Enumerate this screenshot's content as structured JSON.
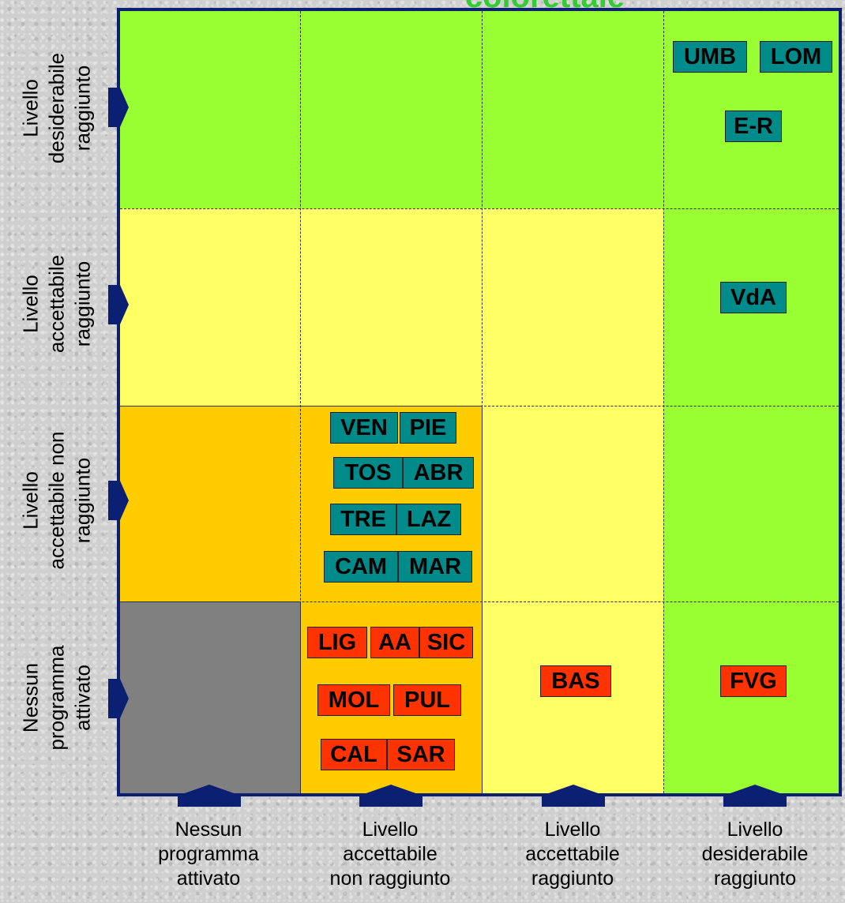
{
  "title": "colorettale",
  "y_axis_labels": [
    "Livello\ndesiderabile\nraggiunto",
    "Livello\naccettabile\nraggiunto",
    "Livello\naccettabile non\nraggiunto",
    "Nessun\nprogramma\nattivato"
  ],
  "x_axis_labels": [
    "Nessun\nprogramma\nattivato",
    "Livello\naccettabile\nnon raggiunto",
    "Livello\naccettabile\nraggiunto",
    "Livello\ndesiderabile\nraggiunto"
  ],
  "regions": {
    "desiderabile_desiderabile": [
      "UMB",
      "LOM",
      "E-R"
    ],
    "accettabile_desiderabile": [
      "VdA"
    ],
    "non_raggiunto_non_raggiunto": [
      "VEN",
      "PIE",
      "TOS",
      "ABR",
      "TRE",
      "LAZ",
      "CAM",
      "MAR"
    ],
    "nessuno_non_raggiunto": [
      "LIG",
      "AA",
      "SIC",
      "MOL",
      "PUL",
      "CAL",
      "SAR"
    ],
    "nessuno_accettabile": [
      "BAS"
    ],
    "nessuno_desiderabile": [
      "FVG"
    ]
  },
  "colors": {
    "green": "#99ff33",
    "yellow": "#ffff66",
    "orange": "#ffcc00",
    "gray": "#808080",
    "teal": "#008b8b",
    "red": "#ff3300",
    "navy": "#0b1f73",
    "title": "#33cc33"
  }
}
